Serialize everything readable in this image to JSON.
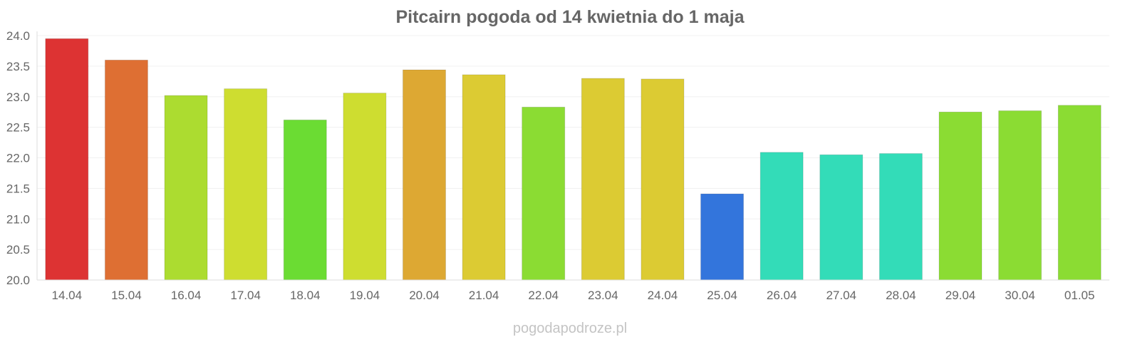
{
  "footer": "pogodapodroze.pl",
  "chart_data": {
    "type": "bar",
    "title": "Pitcairn pogoda od 14 kwietnia do 1 maja",
    "xlabel": "",
    "ylabel": "",
    "ylim": [
      20.0,
      24.0
    ],
    "yticks": [
      "20.0",
      "20.5",
      "21.0",
      "21.5",
      "22.0",
      "22.5",
      "23.0",
      "23.5",
      "24.0"
    ],
    "grid": true,
    "legend": "none",
    "categories": [
      "14.04",
      "15.04",
      "16.04",
      "17.04",
      "18.04",
      "19.04",
      "20.04",
      "21.04",
      "22.04",
      "23.04",
      "24.04",
      "25.04",
      "26.04",
      "27.04",
      "28.04",
      "29.04",
      "30.04",
      "01.05"
    ],
    "values": [
      23.95,
      23.6,
      23.02,
      23.13,
      22.62,
      23.06,
      23.44,
      23.36,
      22.83,
      23.3,
      23.29,
      21.41,
      22.09,
      22.05,
      22.07,
      22.75,
      22.77,
      22.86
    ],
    "colors": [
      "#dd3333",
      "#de6f33",
      "#acdc30",
      "#cedd30",
      "#6bdc33",
      "#cedd30",
      "#dda833",
      "#dccb33",
      "#8bdc33",
      "#dccb33",
      "#dccb33",
      "#3375dc",
      "#33dcb8",
      "#33dcb8",
      "#33dcb8",
      "#8bdc33",
      "#8bdc33",
      "#8bdc33"
    ]
  }
}
